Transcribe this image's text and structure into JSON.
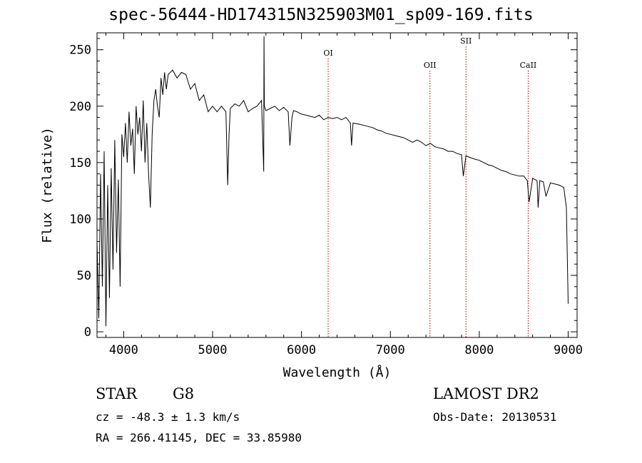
{
  "title": "spec-56444-HD174315N325903M01_sp09-169.fits",
  "footer": {
    "object_class": "STAR",
    "subclass": "G8",
    "survey": "LAMOST DR2",
    "cz": "cz = -48.3 ± 1.3 km/s",
    "obs_date": "Obs-Date: 20130531",
    "radec": "RA = 266.41145, DEC =  33.85980"
  },
  "chart_data": {
    "type": "line",
    "title": "spec-56444-HD174315N325903M01_sp09-169.fits",
    "xlabel": "Wavelength (Å)",
    "ylabel": "Flux (relative)",
    "xlim": [
      3700,
      9100
    ],
    "ylim": [
      -5,
      265
    ],
    "xticks": [
      4000,
      5000,
      6000,
      7000,
      8000,
      9000
    ],
    "yticks": [
      0,
      50,
      100,
      150,
      200,
      250
    ],
    "grid": false,
    "line_color": "#000000",
    "marker_color": "#b00000",
    "line_markers": [
      {
        "label": "OI",
        "x": 6300
      },
      {
        "label": "OII",
        "x": 7445
      },
      {
        "label": "SII",
        "x": 7850
      },
      {
        "label": "CaII",
        "x": 8550
      }
    ],
    "series": [
      {
        "x": [
          3700,
          3720,
          3740,
          3760,
          3780,
          3800,
          3820,
          3840,
          3860,
          3880,
          3900,
          3920,
          3940,
          3960,
          3980,
          4000,
          4020,
          4040,
          4060,
          4080,
          4100,
          4120,
          4140,
          4160,
          4180,
          4200,
          4220,
          4240,
          4260,
          4280,
          4300,
          4320,
          4340,
          4360,
          4380,
          4400,
          4420,
          4440,
          4460,
          4480,
          4500,
          4550,
          4600,
          4650,
          4700,
          4750,
          4800,
          4850,
          4900,
          4950,
          5000,
          5050,
          5100,
          5150,
          5170,
          5185,
          5200,
          5250,
          5300,
          5350,
          5400,
          5450,
          5500,
          5550,
          5575,
          5578,
          5582,
          5600,
          5650,
          5700,
          5750,
          5800,
          5850,
          5870,
          5893,
          5910,
          5950,
          6000,
          6050,
          6100,
          6150,
          6200,
          6250,
          6300,
          6350,
          6400,
          6450,
          6500,
          6550,
          6563,
          6580,
          6650,
          6700,
          6750,
          6800,
          6850,
          6900,
          6950,
          7000,
          7050,
          7100,
          7150,
          7200,
          7250,
          7300,
          7350,
          7400,
          7450,
          7500,
          7550,
          7600,
          7650,
          7700,
          7750,
          7800,
          7820,
          7850,
          7880,
          7950,
          8000,
          8050,
          8100,
          8150,
          8200,
          8250,
          8300,
          8350,
          8400,
          8450,
          8500,
          8540,
          8560,
          8600,
          8650,
          8662,
          8680,
          8720,
          8750,
          8800,
          8850,
          8900,
          8950,
          8980,
          9000
        ],
        "y": [
          80,
          12,
          140,
          40,
          160,
          5,
          130,
          30,
          145,
          55,
          170,
          70,
          135,
          40,
          175,
          155,
          185,
          150,
          195,
          165,
          180,
          140,
          200,
          175,
          190,
          160,
          205,
          150,
          185,
          140,
          110,
          175,
          205,
          215,
          200,
          190,
          225,
          210,
          230,
          215,
          228,
          232,
          225,
          230,
          228,
          215,
          220,
          205,
          210,
          195,
          200,
          195,
          200,
          195,
          130,
          175,
          198,
          202,
          200,
          205,
          195,
          198,
          200,
          205,
          142,
          262,
          200,
          196,
          198,
          200,
          196,
          199,
          195,
          165,
          190,
          196,
          195,
          193,
          192,
          191,
          190,
          192,
          188,
          190,
          189,
          190,
          188,
          190,
          185,
          165,
          185,
          184,
          183,
          182,
          181,
          179,
          178,
          176,
          175,
          174,
          173,
          172,
          170,
          168,
          170,
          168,
          165,
          167,
          164,
          163,
          162,
          160,
          160,
          158,
          157,
          138,
          156,
          155,
          153,
          152,
          150,
          148,
          147,
          145,
          143,
          142,
          140,
          139,
          138,
          138,
          134,
          115,
          136,
          134,
          110,
          134,
          133,
          120,
          132,
          131,
          130,
          128,
          110,
          25
        ]
      }
    ]
  }
}
